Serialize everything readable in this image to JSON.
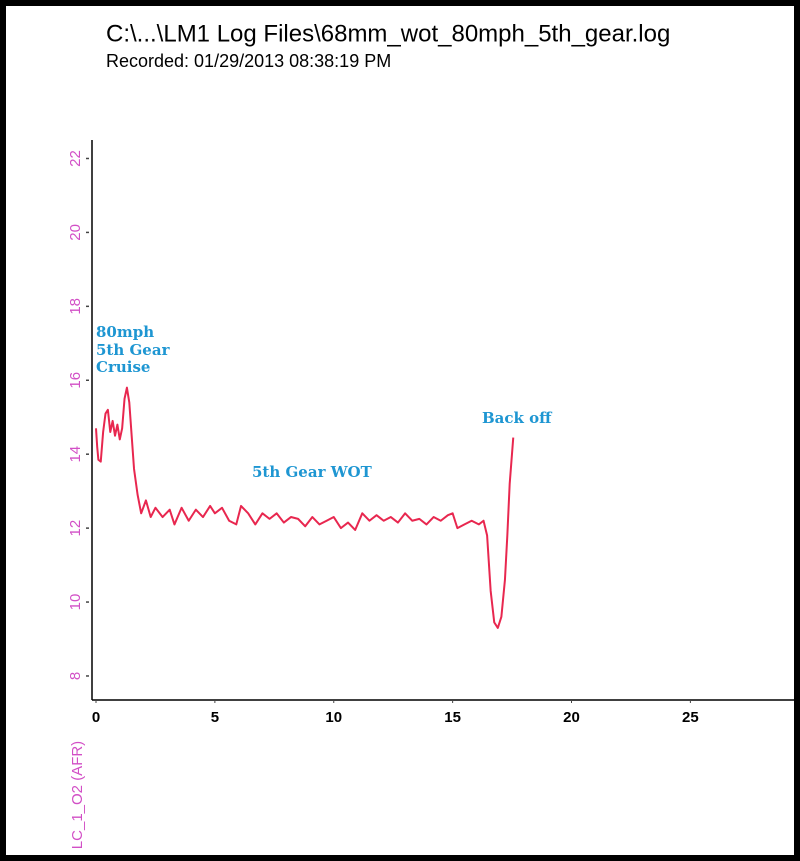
{
  "chart_data": {
    "type": "line",
    "title": "C:\\...\\LM1 Log Files\\68mm_wot_80mph_5th_gear.log",
    "subtitle": "Recorded: 01/29/2013 08:38:19 PM",
    "y_label": "LC_1_O2 (AFR)",
    "annotations": [
      "80mph",
      "5th Gear",
      "Cruise",
      "5th Gear WOT",
      "Back off"
    ],
    "x": [
      0.0,
      0.05,
      0.1,
      0.2,
      0.3,
      0.4,
      0.5,
      0.6,
      0.7,
      0.8,
      0.9,
      1.0,
      1.1,
      1.2,
      1.3,
      1.4,
      1.5,
      1.6,
      1.75,
      1.9,
      2.1,
      2.3,
      2.5,
      2.8,
      3.1,
      3.3,
      3.6,
      3.9,
      4.2,
      4.5,
      4.8,
      5.0,
      5.3,
      5.6,
      5.9,
      6.1,
      6.4,
      6.7,
      7.0,
      7.3,
      7.6,
      7.9,
      8.2,
      8.5,
      8.8,
      9.1,
      9.4,
      9.7,
      10.0,
      10.3,
      10.6,
      10.9,
      11.2,
      11.5,
      11.8,
      12.1,
      12.4,
      12.7,
      13.0,
      13.3,
      13.6,
      13.9,
      14.2,
      14.5,
      14.8,
      15.0,
      15.2,
      15.5,
      15.8,
      16.1,
      16.3,
      16.45,
      16.6,
      16.75,
      16.9,
      17.05,
      17.2,
      17.3,
      17.4,
      17.55
    ],
    "series": [
      {
        "color": "#e8274f",
        "values": [
          14.7,
          14.2,
          13.85,
          13.8,
          14.6,
          15.1,
          15.2,
          14.6,
          14.9,
          14.5,
          14.8,
          14.4,
          14.7,
          15.5,
          15.8,
          15.4,
          14.5,
          13.6,
          12.9,
          12.4,
          12.75,
          12.3,
          12.55,
          12.3,
          12.5,
          12.1,
          12.55,
          12.2,
          12.5,
          12.3,
          12.6,
          12.4,
          12.55,
          12.2,
          12.1,
          12.6,
          12.4,
          12.1,
          12.4,
          12.25,
          12.4,
          12.15,
          12.3,
          12.25,
          12.05,
          12.3,
          12.1,
          12.2,
          12.3,
          12.0,
          12.15,
          11.95,
          12.4,
          12.2,
          12.35,
          12.2,
          12.3,
          12.15,
          12.4,
          12.2,
          12.25,
          12.1,
          12.3,
          12.2,
          12.35,
          12.4,
          12.0,
          12.1,
          12.2,
          12.1,
          12.2,
          11.8,
          10.3,
          9.45,
          9.3,
          9.6,
          10.6,
          11.8,
          13.2,
          14.45
        ]
      }
    ],
    "xlim": [
      0,
      29.4
    ],
    "xticks": [
      0,
      5,
      10,
      15,
      20,
      25
    ],
    "ylim": [
      7.35,
      22.5
    ],
    "yticks": [
      8,
      10,
      12,
      14,
      16,
      18,
      20,
      22
    ]
  }
}
